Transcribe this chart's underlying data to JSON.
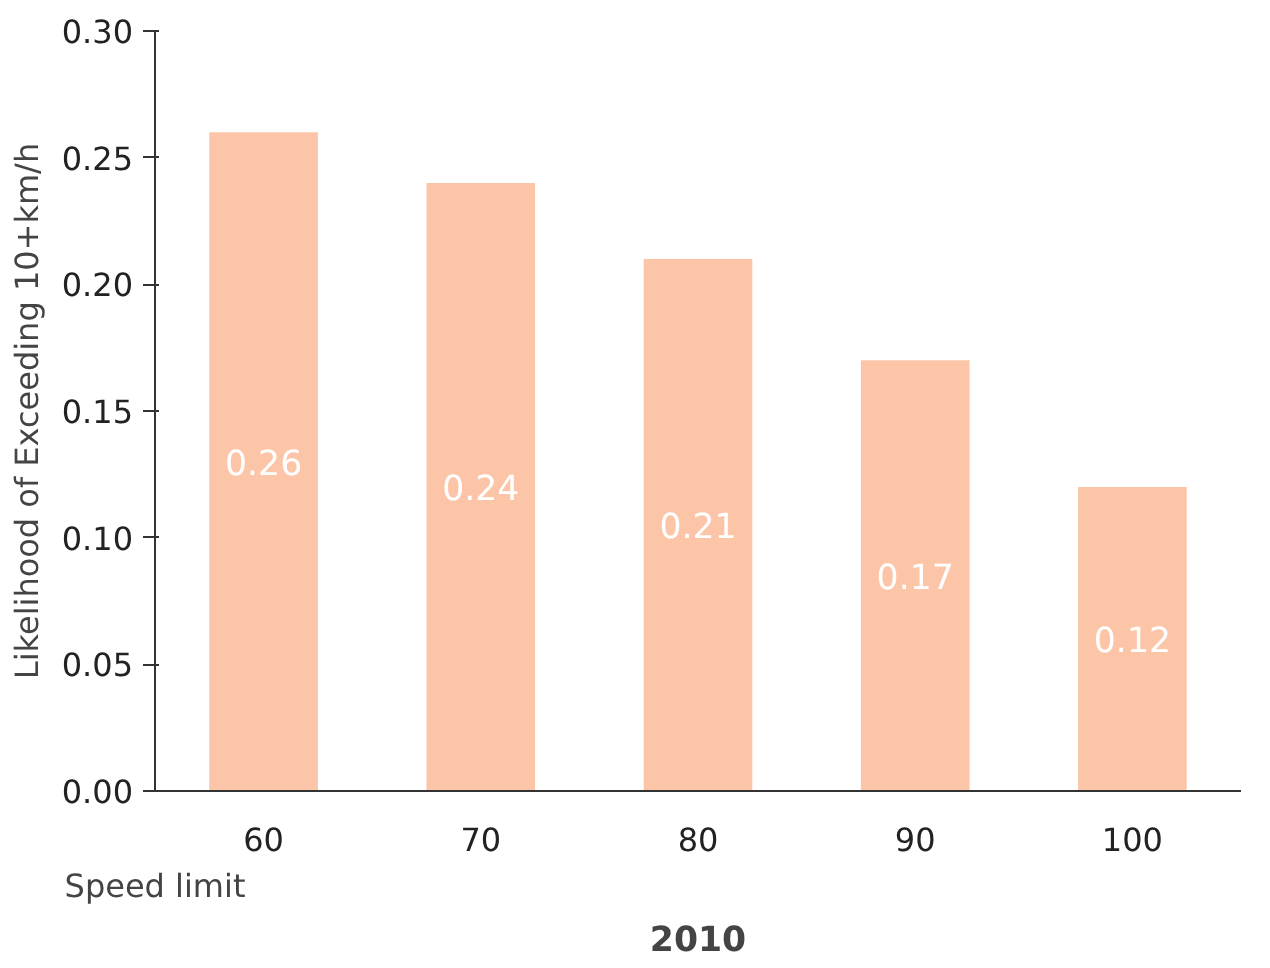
{
  "chart_data": {
    "type": "bar",
    "title": "2010",
    "xlabel": "Speed limit",
    "ylabel": "Likelihood of Exceeding 10+km/h",
    "categories": [
      "60",
      "70",
      "80",
      "90",
      "100"
    ],
    "values": [
      0.26,
      0.24,
      0.21,
      0.17,
      0.12
    ],
    "color": "#fcc5a8",
    "ylim": [
      0,
      0.3
    ],
    "yticks": [
      {
        "value": 0,
        "label": "0.00"
      },
      {
        "value": 0.05,
        "label": "0.05"
      },
      {
        "value": 0.1,
        "label": "0.10"
      },
      {
        "value": 0.15,
        "label": "0.15"
      },
      {
        "value": 0.2,
        "label": "0.20"
      },
      {
        "value": 0.25,
        "label": "0.25"
      },
      {
        "value": 0.3,
        "label": "0.30"
      }
    ],
    "grid": false,
    "data_labels": true
  }
}
